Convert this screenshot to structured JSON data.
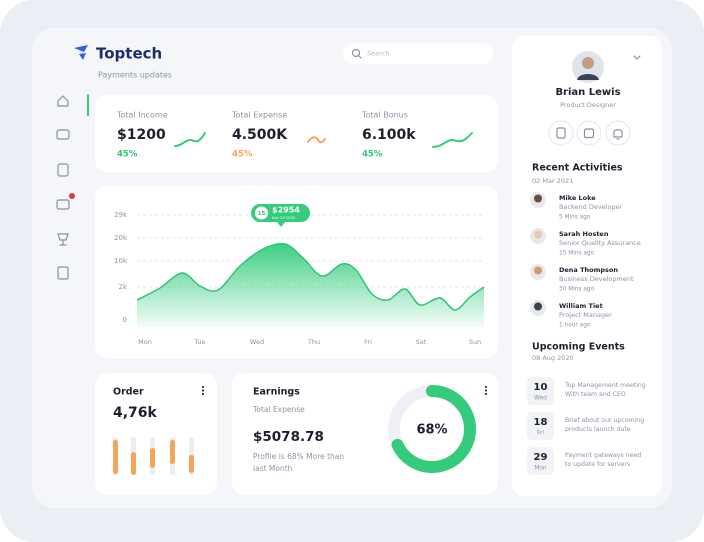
{
  "brand": {
    "name": "Toptech",
    "subtitle": "Payments updates"
  },
  "search": {
    "placeholder": "Search"
  },
  "stats": [
    {
      "label": "Total Income",
      "value": "$1200",
      "change": "45%"
    },
    {
      "label": "Total Expense",
      "value": "4.500K",
      "change": "45%"
    },
    {
      "label": "Total Bonus",
      "value": "6.100k",
      "change": "45%"
    }
  ],
  "chart": {
    "yticks": [
      "29k",
      "20k",
      "10k",
      "2k",
      "0"
    ],
    "days": [
      "Mon",
      "Tue",
      "Wed",
      "Thu",
      "Fri",
      "Sat",
      "Sun"
    ],
    "tooltip": {
      "badge": "15",
      "amount": "$2954",
      "date": "Nov 29 2020"
    }
  },
  "order": {
    "title": "Order",
    "value": "4,76k"
  },
  "earnings": {
    "title": "Earnings",
    "subtitle": "Total Expense",
    "amount": "$5078.78",
    "note": [
      "Profile is 68% More than",
      "last Month"
    ],
    "donut": {
      "value": 68,
      "label": "68%"
    }
  },
  "profile": {
    "name": "Brian Lewis",
    "role": "Product Designer"
  },
  "activities": {
    "title": "Recent Activities",
    "date": "02 Mar 2021",
    "items": [
      {
        "name": "Mike Loke",
        "role": "Backend Developer",
        "time": "5 Mins ago"
      },
      {
        "name": "Sarah Hosten",
        "role": "Senior Quality Assurance",
        "time": "15 Mins ago"
      },
      {
        "name": "Dena Thompson",
        "role": "Business Development",
        "time": "30 Mins ago"
      },
      {
        "name": "William Tiet",
        "role": "Project Manager",
        "time": "1 hour ago"
      }
    ]
  },
  "events": {
    "title": "Upcoming Events",
    "date": "08 Aug 2020",
    "items": [
      {
        "day": "10",
        "weekday": "Wed",
        "lines": [
          "Top Management meeting",
          "With team and CEO"
        ]
      },
      {
        "day": "18",
        "weekday": "Fri",
        "lines": [
          "Brief about our upcoming",
          "products launch date"
        ]
      },
      {
        "day": "29",
        "weekday": "Mon",
        "lines": [
          "Payment gateways need",
          "to update for servers"
        ]
      }
    ]
  }
}
